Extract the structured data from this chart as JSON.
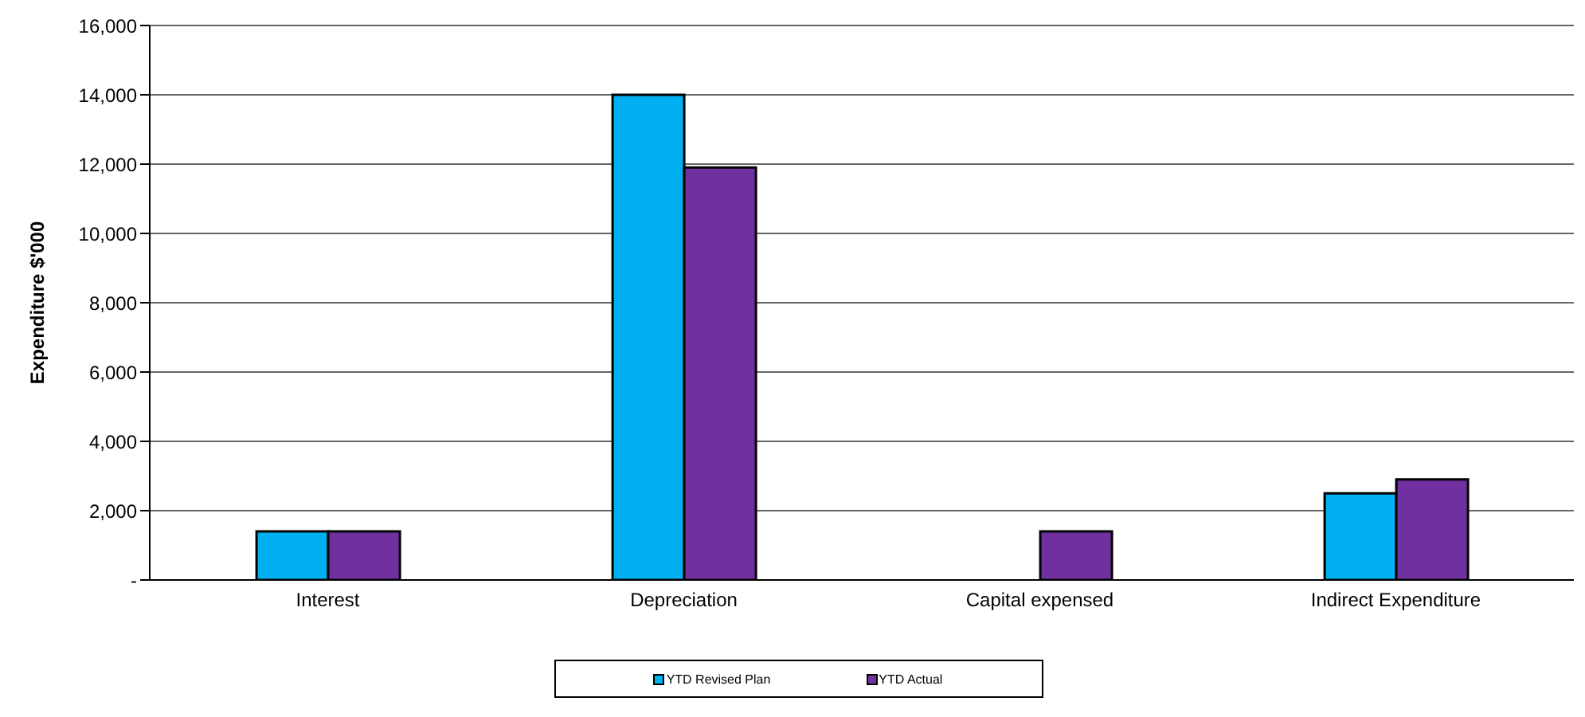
{
  "chart_data": {
    "type": "bar",
    "ylabel": "Expenditure $'000",
    "categories": [
      "Interest",
      "Depreciation",
      "Capital expensed",
      "Indirect Expenditure"
    ],
    "series": [
      {
        "name": "YTD Revised Plan",
        "color": "#00b0f0",
        "values": [
          1400,
          14000,
          null,
          2500
        ]
      },
      {
        "name": "YTD Actual",
        "color": "#7030a0",
        "values": [
          1400,
          11900,
          1400,
          2900
        ]
      }
    ],
    "ylim": [
      0,
      16000
    ],
    "yticks": [
      {
        "value": 0,
        "label": "-"
      },
      {
        "value": 2000,
        "label": "2,000"
      },
      {
        "value": 4000,
        "label": "4,000"
      },
      {
        "value": 6000,
        "label": "6,000"
      },
      {
        "value": 8000,
        "label": "8,000"
      },
      {
        "value": 10000,
        "label": "10,000"
      },
      {
        "value": 12000,
        "label": "12,000"
      },
      {
        "value": 14000,
        "label": "14,000"
      },
      {
        "value": 16000,
        "label": "16,000"
      }
    ],
    "grid": "y",
    "legend": "bottom"
  }
}
